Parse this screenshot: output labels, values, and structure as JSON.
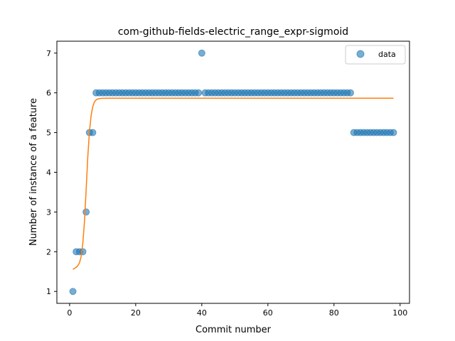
{
  "chart_data": {
    "type": "scatter",
    "title": "com-github-fields-electric_range_expr-sigmoid",
    "xlabel": "Commit number",
    "ylabel": "Number of instance of a feature",
    "xlim": [
      -3.85,
      102.85
    ],
    "ylim": [
      0.7,
      7.3
    ],
    "xticks": [
      0,
      20,
      40,
      60,
      80,
      100
    ],
    "yticks": [
      1,
      2,
      3,
      4,
      5,
      6,
      7
    ],
    "grid": false,
    "legend": {
      "position": "top-right",
      "entries": [
        "data"
      ]
    },
    "series": [
      {
        "name": "data",
        "kind": "scatter",
        "color": "#1f77b4",
        "x": [
          1,
          2,
          3,
          4,
          5,
          6,
          7,
          8,
          9,
          10,
          11,
          12,
          13,
          14,
          15,
          16,
          17,
          18,
          19,
          20,
          21,
          22,
          23,
          24,
          25,
          26,
          27,
          28,
          29,
          30,
          31,
          32,
          33,
          34,
          35,
          36,
          37,
          38,
          39,
          40,
          41,
          42,
          43,
          44,
          45,
          46,
          47,
          48,
          49,
          50,
          51,
          52,
          53,
          54,
          55,
          56,
          57,
          58,
          59,
          60,
          61,
          62,
          63,
          64,
          65,
          66,
          67,
          68,
          69,
          70,
          71,
          72,
          73,
          74,
          75,
          76,
          77,
          78,
          79,
          80,
          81,
          82,
          83,
          84,
          85,
          86,
          87,
          88,
          89,
          90,
          91,
          92,
          93,
          94,
          95,
          96,
          97,
          98
        ],
        "y": [
          1,
          2,
          2,
          2,
          3,
          5,
          5,
          6,
          6,
          6,
          6,
          6,
          6,
          6,
          6,
          6,
          6,
          6,
          6,
          6,
          6,
          6,
          6,
          6,
          6,
          6,
          6,
          6,
          6,
          6,
          6,
          6,
          6,
          6,
          6,
          6,
          6,
          6,
          6,
          7,
          6,
          6,
          6,
          6,
          6,
          6,
          6,
          6,
          6,
          6,
          6,
          6,
          6,
          6,
          6,
          6,
          6,
          6,
          6,
          6,
          6,
          6,
          6,
          6,
          6,
          6,
          6,
          6,
          6,
          6,
          6,
          6,
          6,
          6,
          6,
          6,
          6,
          6,
          6,
          6,
          6,
          6,
          6,
          6,
          6,
          5,
          5,
          5,
          5,
          5,
          5,
          5,
          5,
          5,
          5,
          5,
          5,
          5
        ]
      },
      {
        "kind": "line",
        "color": "#ff7f0e",
        "x": [
          1,
          1.5,
          2,
          2.5,
          3,
          3.5,
          4,
          4.5,
          5,
          5.5,
          6,
          6.5,
          7,
          7.5,
          8,
          8.5,
          9,
          9.5,
          10,
          12,
          20,
          40,
          60,
          80,
          98
        ],
        "y": [
          1.56,
          1.58,
          1.61,
          1.65,
          1.72,
          1.88,
          2.21,
          2.76,
          3.55,
          4.38,
          5.02,
          5.42,
          5.65,
          5.77,
          5.82,
          5.845,
          5.855,
          5.86,
          5.862,
          5.865,
          5.865,
          5.865,
          5.865,
          5.865,
          5.865
        ]
      }
    ]
  }
}
